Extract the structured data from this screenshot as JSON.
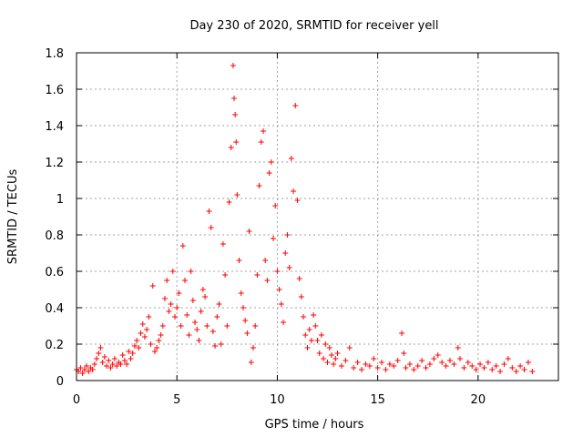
{
  "chart_data": {
    "type": "scatter",
    "title": "Day 230 of 2020, SRMTID for receiver yell",
    "xlabel": "GPS time / hours",
    "ylabel": "SRMTID / TECUs",
    "xlim": [
      0,
      24
    ],
    "ylim": [
      0,
      1.8
    ],
    "xticks": [
      0,
      5,
      10,
      15,
      20
    ],
    "xtick_labels": [
      "0",
      "5",
      "10",
      "15",
      "20"
    ],
    "yticks": [
      0,
      0.2,
      0.4,
      0.6,
      0.8,
      1,
      1.2,
      1.4,
      1.6,
      1.8
    ],
    "ytick_labels": [
      "0",
      "0.2",
      "0.4",
      "0.6",
      "0.8",
      "1",
      "1.2",
      "1.4",
      "1.6",
      "1.8"
    ],
    "grid": true,
    "marker": "+",
    "series": [
      {
        "name": "SRMTID",
        "color": "#ff0000",
        "points": [
          [
            0.0,
            0.06
          ],
          [
            0.1,
            0.05
          ],
          [
            0.2,
            0.07
          ],
          [
            0.3,
            0.04
          ],
          [
            0.4,
            0.06
          ],
          [
            0.5,
            0.08
          ],
          [
            0.6,
            0.05
          ],
          [
            0.7,
            0.07
          ],
          [
            0.8,
            0.06
          ],
          [
            0.9,
            0.09
          ],
          [
            1.0,
            0.12
          ],
          [
            1.1,
            0.15
          ],
          [
            1.2,
            0.18
          ],
          [
            1.3,
            0.1
          ],
          [
            1.4,
            0.13
          ],
          [
            1.5,
            0.08
          ],
          [
            1.6,
            0.11
          ],
          [
            1.7,
            0.07
          ],
          [
            1.8,
            0.09
          ],
          [
            1.9,
            0.12
          ],
          [
            2.0,
            0.08
          ],
          [
            2.1,
            0.1
          ],
          [
            2.2,
            0.09
          ],
          [
            2.3,
            0.14
          ],
          [
            2.4,
            0.11
          ],
          [
            2.5,
            0.09
          ],
          [
            2.6,
            0.16
          ],
          [
            2.7,
            0.12
          ],
          [
            2.8,
            0.15
          ],
          [
            2.9,
            0.19
          ],
          [
            3.0,
            0.22
          ],
          [
            3.1,
            0.18
          ],
          [
            3.2,
            0.26
          ],
          [
            3.3,
            0.31
          ],
          [
            3.4,
            0.24
          ],
          [
            3.5,
            0.28
          ],
          [
            3.6,
            0.35
          ],
          [
            3.7,
            0.2
          ],
          [
            3.8,
            0.52
          ],
          [
            3.9,
            0.16
          ],
          [
            4.0,
            0.18
          ],
          [
            4.1,
            0.22
          ],
          [
            4.2,
            0.25
          ],
          [
            4.3,
            0.3
          ],
          [
            4.4,
            0.45
          ],
          [
            4.5,
            0.55
          ],
          [
            4.6,
            0.38
          ],
          [
            4.7,
            0.42
          ],
          [
            4.8,
            0.6
          ],
          [
            4.9,
            0.35
          ],
          [
            5.0,
            0.4
          ],
          [
            5.1,
            0.48
          ],
          [
            5.2,
            0.3
          ],
          [
            5.3,
            0.74
          ],
          [
            5.4,
            0.55
          ],
          [
            5.5,
            0.36
          ],
          [
            5.6,
            0.25
          ],
          [
            5.7,
            0.6
          ],
          [
            5.8,
            0.44
          ],
          [
            5.9,
            0.32
          ],
          [
            6.0,
            0.28
          ],
          [
            6.1,
            0.22
          ],
          [
            6.2,
            0.38
          ],
          [
            6.3,
            0.5
          ],
          [
            6.4,
            0.46
          ],
          [
            6.5,
            0.3
          ],
          [
            6.6,
            0.93
          ],
          [
            6.7,
            0.84
          ],
          [
            6.8,
            0.27
          ],
          [
            6.9,
            0.19
          ],
          [
            7.0,
            0.35
          ],
          [
            7.1,
            0.42
          ],
          [
            7.2,
            0.2
          ],
          [
            7.3,
            0.75
          ],
          [
            7.4,
            0.58
          ],
          [
            7.5,
            0.3
          ],
          [
            7.6,
            0.98
          ],
          [
            7.7,
            1.28
          ],
          [
            7.8,
            1.73
          ],
          [
            7.85,
            1.55
          ],
          [
            7.9,
            1.46
          ],
          [
            7.95,
            1.31
          ],
          [
            8.0,
            1.02
          ],
          [
            8.1,
            0.66
          ],
          [
            8.2,
            0.48
          ],
          [
            8.3,
            0.4
          ],
          [
            8.4,
            0.33
          ],
          [
            8.5,
            0.26
          ],
          [
            8.6,
            0.82
          ],
          [
            8.7,
            0.1
          ],
          [
            8.8,
            0.18
          ],
          [
            8.9,
            0.3
          ],
          [
            9.0,
            0.58
          ],
          [
            9.1,
            1.07
          ],
          [
            9.2,
            1.31
          ],
          [
            9.3,
            1.37
          ],
          [
            9.4,
            0.66
          ],
          [
            9.5,
            0.55
          ],
          [
            9.6,
            1.14
          ],
          [
            9.7,
            1.2
          ],
          [
            9.8,
            0.78
          ],
          [
            9.9,
            0.96
          ],
          [
            10.0,
            0.6
          ],
          [
            10.1,
            0.5
          ],
          [
            10.2,
            0.42
          ],
          [
            10.3,
            0.32
          ],
          [
            10.4,
            0.7
          ],
          [
            10.5,
            0.8
          ],
          [
            10.6,
            0.62
          ],
          [
            10.7,
            1.22
          ],
          [
            10.8,
            1.04
          ],
          [
            10.9,
            1.51
          ],
          [
            11.0,
            0.99
          ],
          [
            11.1,
            0.56
          ],
          [
            11.2,
            0.46
          ],
          [
            11.3,
            0.35
          ],
          [
            11.4,
            0.25
          ],
          [
            11.5,
            0.18
          ],
          [
            11.6,
            0.28
          ],
          [
            11.7,
            0.22
          ],
          [
            11.8,
            0.36
          ],
          [
            11.9,
            0.3
          ],
          [
            12.0,
            0.22
          ],
          [
            12.1,
            0.15
          ],
          [
            12.2,
            0.25
          ],
          [
            12.3,
            0.12
          ],
          [
            12.4,
            0.2
          ],
          [
            12.5,
            0.1
          ],
          [
            12.6,
            0.18
          ],
          [
            12.7,
            0.14
          ],
          [
            12.8,
            0.09
          ],
          [
            12.9,
            0.12
          ],
          [
            13.0,
            0.15
          ],
          [
            13.2,
            0.08
          ],
          [
            13.4,
            0.11
          ],
          [
            13.6,
            0.18
          ],
          [
            13.8,
            0.07
          ],
          [
            14.0,
            0.1
          ],
          [
            14.2,
            0.06
          ],
          [
            14.4,
            0.09
          ],
          [
            14.6,
            0.08
          ],
          [
            14.8,
            0.12
          ],
          [
            15.0,
            0.07
          ],
          [
            15.2,
            0.1
          ],
          [
            15.4,
            0.06
          ],
          [
            15.6,
            0.09
          ],
          [
            15.8,
            0.08
          ],
          [
            16.0,
            0.11
          ],
          [
            16.2,
            0.26
          ],
          [
            16.3,
            0.15
          ],
          [
            16.4,
            0.07
          ],
          [
            16.6,
            0.09
          ],
          [
            16.8,
            0.06
          ],
          [
            17.0,
            0.08
          ],
          [
            17.2,
            0.11
          ],
          [
            17.4,
            0.07
          ],
          [
            17.6,
            0.09
          ],
          [
            17.8,
            0.12
          ],
          [
            18.0,
            0.14
          ],
          [
            18.2,
            0.1
          ],
          [
            18.4,
            0.08
          ],
          [
            18.6,
            0.11
          ],
          [
            18.8,
            0.09
          ],
          [
            19.0,
            0.18
          ],
          [
            19.1,
            0.12
          ],
          [
            19.3,
            0.07
          ],
          [
            19.5,
            0.1
          ],
          [
            19.7,
            0.08
          ],
          [
            19.9,
            0.06
          ],
          [
            20.1,
            0.09
          ],
          [
            20.3,
            0.07
          ],
          [
            20.5,
            0.1
          ],
          [
            20.7,
            0.06
          ],
          [
            20.9,
            0.08
          ],
          [
            21.1,
            0.05
          ],
          [
            21.3,
            0.09
          ],
          [
            21.5,
            0.12
          ],
          [
            21.7,
            0.07
          ],
          [
            21.9,
            0.05
          ],
          [
            22.1,
            0.08
          ],
          [
            22.3,
            0.06
          ],
          [
            22.5,
            0.1
          ],
          [
            22.7,
            0.05
          ]
        ]
      }
    ]
  }
}
